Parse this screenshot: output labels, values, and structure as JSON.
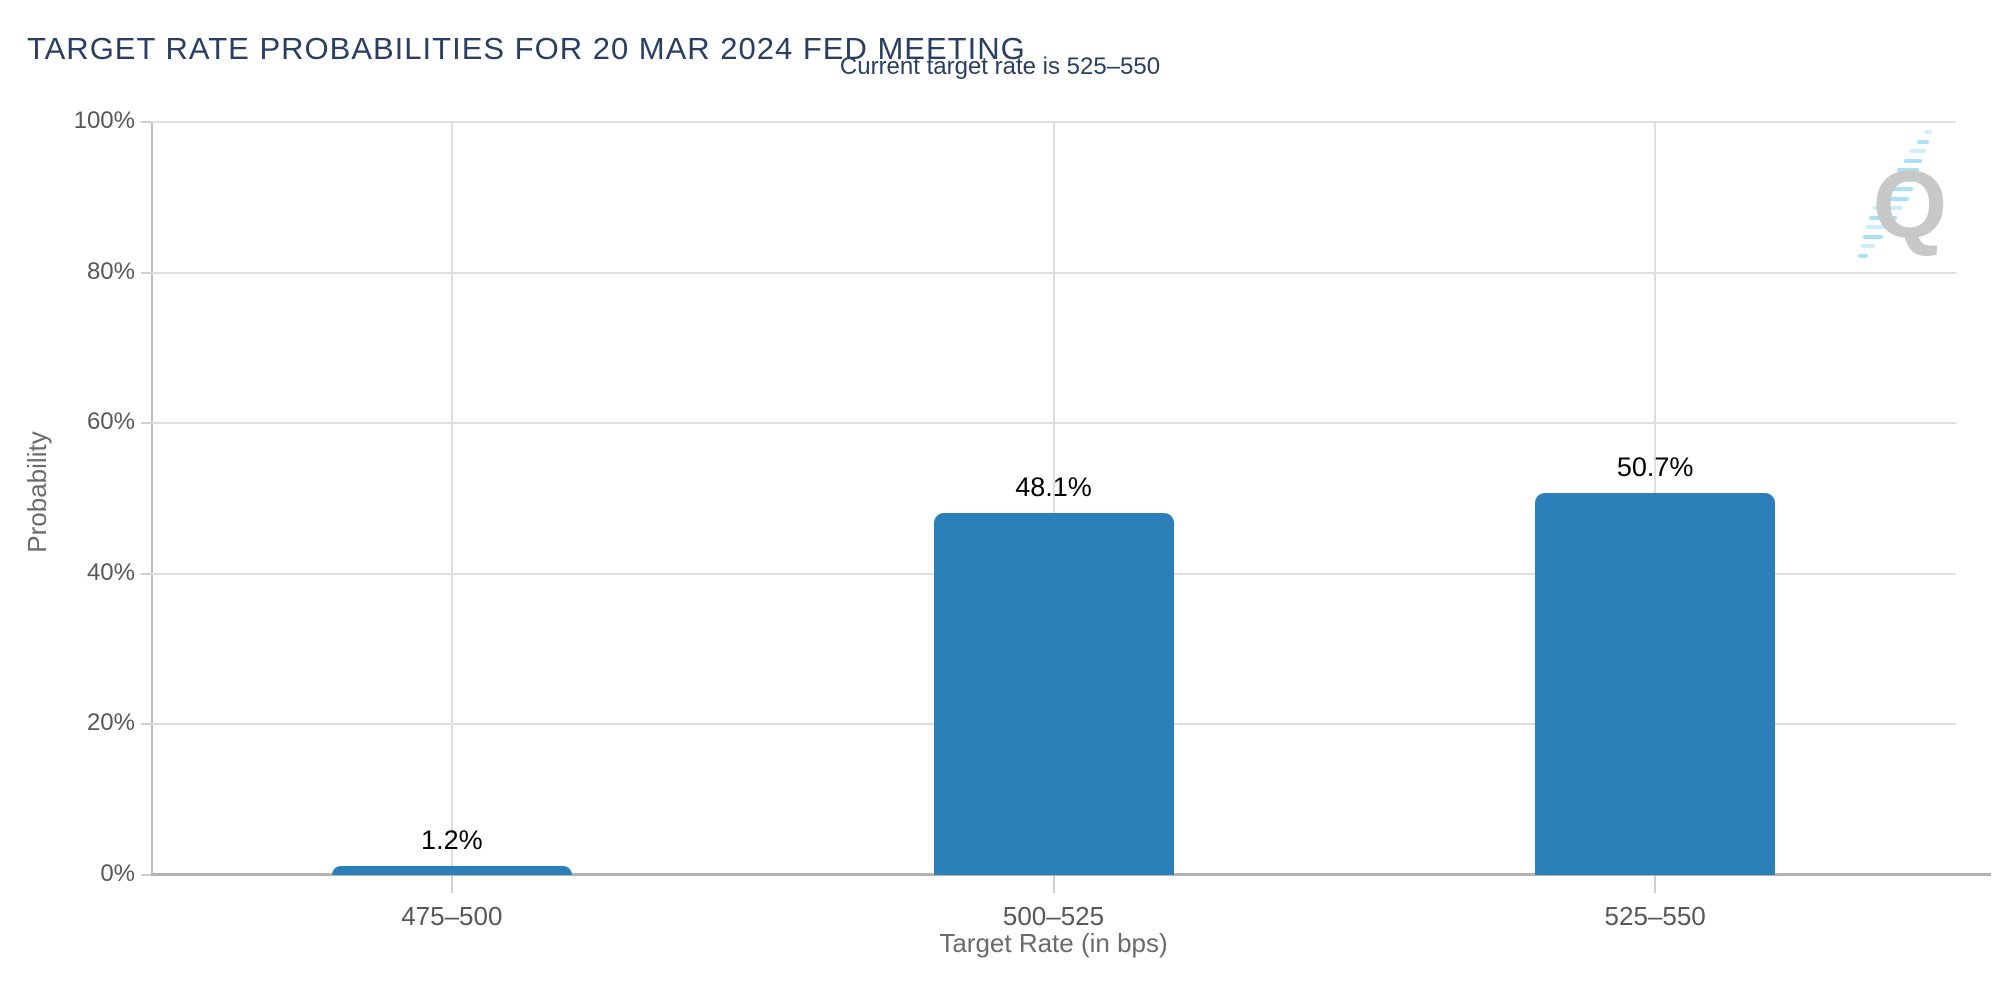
{
  "chart_data": {
    "type": "bar",
    "title": "TARGET RATE PROBABILITIES FOR 20 MAR 2024 FED MEETING",
    "subtitle": "Current target rate is 525–550",
    "categories": [
      "475–500",
      "500–525",
      "525–550"
    ],
    "values": [
      1.2,
      48.1,
      50.7
    ],
    "value_labels": [
      "1.2%",
      "48.1%",
      "50.7%"
    ],
    "xlabel": "Target Rate (in bps)",
    "ylabel": "Probability",
    "ylim": [
      0,
      100
    ],
    "yticks": [
      0,
      20,
      40,
      60,
      80,
      100
    ],
    "ytick_labels": [
      "0%",
      "20%",
      "40%",
      "60%",
      "80%",
      "100%"
    ],
    "grid": true,
    "legend_position": "none"
  },
  "colors": {
    "title_navy": "#293e63",
    "bar_blue": "#2b80ba",
    "axis_text": "#58585b",
    "axis_title": "#6b6b6e",
    "grid_line": "#dedede",
    "axis_line": "#b3b3b3",
    "tick_mark": "#cfcfcf",
    "value_label": "#000000",
    "logo_gray": "#c8c8c8",
    "logo_blue": "#a9e1f8",
    "logo_blue_light": "#cdeefb"
  },
  "logo": {
    "letter": "Q"
  }
}
